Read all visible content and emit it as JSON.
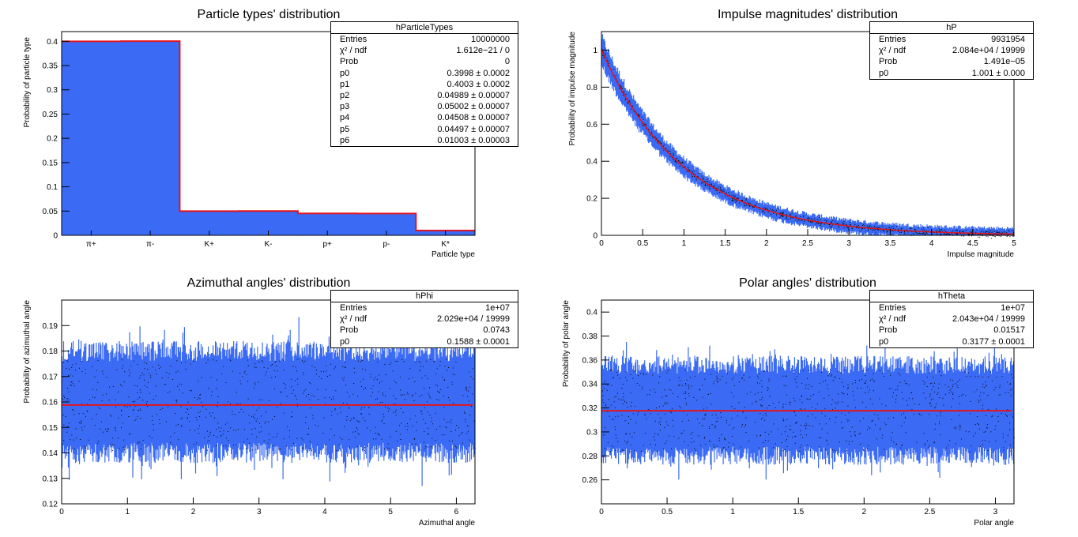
{
  "colors": {
    "fill": "#3b6bf5",
    "fit": "#e3141c",
    "axis": "#000000",
    "background": "#ffffff"
  },
  "chart_data": [
    {
      "id": "types",
      "type": "bar",
      "title": "Particle types' distribution",
      "xlabel": "Particle type",
      "ylabel": "Probability of particle type",
      "categories": [
        "π+",
        "π-",
        "K+",
        "K-",
        "p+",
        "p-",
        "K*"
      ],
      "values": [
        0.3998,
        0.4003,
        0.04989,
        0.05002,
        0.04508,
        0.04497,
        0.01003
      ],
      "fit_values": [
        0.3998,
        0.4003,
        0.04989,
        0.05002,
        0.04508,
        0.04497,
        0.01003
      ],
      "xlim": [
        0,
        7
      ],
      "ylim": [
        0,
        0.42
      ],
      "yticks": [
        0,
        0.05,
        0.1,
        0.15,
        0.2,
        0.25,
        0.3,
        0.35,
        0.4
      ],
      "yticklabels": [
        "0",
        "0.05",
        "0.1",
        "0.15",
        "0.2",
        "0.25",
        "0.3",
        "0.35",
        "0.4"
      ],
      "stats": {
        "name": "hParticleTypes",
        "rows": [
          [
            "Entries",
            "10000000"
          ],
          [
            "χ² / ndf",
            "1.612e−21 / 0"
          ],
          [
            "Prob",
            "0"
          ],
          [
            "p0",
            "0.3998 ± 0.0002"
          ],
          [
            "p1",
            "0.4003 ± 0.0002"
          ],
          [
            "p2",
            "0.04989 ± 0.00007"
          ],
          [
            "p3",
            "0.05002 ± 0.00007"
          ],
          [
            "p4",
            "0.04508 ± 0.00007"
          ],
          [
            "p5",
            "0.04497 ± 0.00007"
          ],
          [
            "p6",
            "0.01003 ± 0.00003"
          ]
        ]
      }
    },
    {
      "id": "impulse",
      "type": "area",
      "title": "Impulse magnitudes' distribution",
      "xlabel": "Impulse magnitude",
      "ylabel": "Probability of impulse magnitude",
      "model": "exponential",
      "fit_p0": 1.001,
      "noise_relative": 0.03,
      "xlim": [
        0,
        5
      ],
      "ylim": [
        0,
        1.1
      ],
      "xticks": [
        0,
        0.5,
        1,
        1.5,
        2,
        2.5,
        3,
        3.5,
        4,
        4.5,
        5
      ],
      "xticklabels": [
        "0",
        "0.5",
        "1",
        "1.5",
        "2",
        "2.5",
        "3",
        "3.5",
        "4",
        "4.5",
        "5"
      ],
      "yticks": [
        0,
        0.2,
        0.4,
        0.6,
        0.8,
        1
      ],
      "yticklabels": [
        "0",
        "0.2",
        "0.4",
        "0.6",
        "0.8",
        "1"
      ],
      "stats": {
        "name": "hP",
        "rows": [
          [
            "Entries",
            "9931954"
          ],
          [
            "χ² / ndf",
            "2.084e+04 / 19999"
          ],
          [
            "Prob",
            "1.491e−05"
          ],
          [
            "p0",
            "1.001 ± 0.000"
          ]
        ]
      }
    },
    {
      "id": "phi",
      "type": "area",
      "title": "Azimuthal angles' distribution",
      "xlabel": "Azimuthal angle",
      "ylabel": "Probability of azimuthal angle",
      "model": "constant",
      "fit_p0": 0.1588,
      "band": [
        0.14,
        0.18
      ],
      "spike_range": [
        0.125,
        0.195
      ],
      "xlim": [
        0,
        6.283
      ],
      "ylim": [
        0.12,
        0.2
      ],
      "xticks": [
        0,
        1,
        2,
        3,
        4,
        5,
        6
      ],
      "xticklabels": [
        "0",
        "1",
        "2",
        "3",
        "4",
        "5",
        "6"
      ],
      "yticks": [
        0.12,
        0.13,
        0.14,
        0.15,
        0.16,
        0.17,
        0.18,
        0.19
      ],
      "yticklabels": [
        "0.12",
        "0.13",
        "0.14",
        "0.15",
        "0.16",
        "0.17",
        "0.18",
        "0.19"
      ],
      "stats": {
        "name": "hPhi",
        "rows": [
          [
            "Entries",
            "1e+07"
          ],
          [
            "χ² / ndf",
            "2.029e+04 / 19999"
          ],
          [
            "Prob",
            "0.0743"
          ],
          [
            "p0",
            "0.1588 ± 0.0001"
          ]
        ]
      }
    },
    {
      "id": "theta",
      "type": "area",
      "title": "Polar angles' distribution",
      "xlabel": "Polar angle",
      "ylabel": "Probability of polar angle",
      "model": "constant",
      "fit_p0": 0.3177,
      "band": [
        0.28,
        0.356
      ],
      "spike_range": [
        0.255,
        0.402
      ],
      "xlim": [
        0,
        3.1416
      ],
      "ylim": [
        0.24,
        0.41
      ],
      "xticks": [
        0,
        0.5,
        1,
        1.5,
        2,
        2.5,
        3
      ],
      "xticklabels": [
        "0",
        "0.5",
        "1",
        "1.5",
        "2",
        "2.5",
        "3"
      ],
      "yticks": [
        0.26,
        0.28,
        0.3,
        0.32,
        0.34,
        0.36,
        0.38,
        0.4
      ],
      "yticklabels": [
        "0.26",
        "0.28",
        "0.3",
        "0.32",
        "0.34",
        "0.36",
        "0.38",
        "0.4"
      ],
      "stats": {
        "name": "hTheta",
        "rows": [
          [
            "Entries",
            "1e+07"
          ],
          [
            "χ² / ndf",
            "2.043e+04 / 19999"
          ],
          [
            "Prob",
            "0.01517"
          ],
          [
            "p0",
            "0.3177 ± 0.0001"
          ]
        ]
      }
    }
  ]
}
